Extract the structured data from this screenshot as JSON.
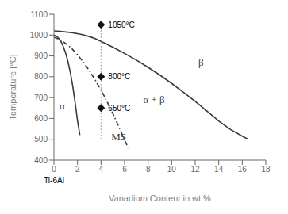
{
  "chart_data": {
    "type": "line",
    "xlabel": "Vanadium Content in wt.%",
    "ylabel": "Temperature [°C]",
    "xlim": [
      0,
      18
    ],
    "ylim": [
      400,
      1100
    ],
    "xticks": [
      0,
      2,
      4,
      6,
      8,
      10,
      12,
      14,
      16,
      18
    ],
    "yticks": [
      400,
      500,
      600,
      700,
      800,
      900,
      1000,
      1100
    ],
    "grid": false,
    "data_labels": true,
    "series": [
      {
        "type": "line",
        "color": "#3a3a3a",
        "line_style": "solid",
        "x": [
          0.0,
          0.5,
          1.0,
          1.5,
          2.0,
          2.5,
          3.0,
          3.5,
          4.0,
          5.0,
          6.0,
          7.0,
          8.0,
          9.0,
          10.0,
          11.0,
          12.0,
          13.0,
          14.0,
          15.0,
          16.0,
          16.5
        ],
        "values": [
          1020,
          1018,
          1015,
          1012,
          1007,
          1001,
          993,
          983,
          970,
          942,
          912,
          880,
          845,
          808,
          768,
          726,
          682,
          635,
          588,
          547,
          515,
          500
        ]
      },
      {
        "type": "line",
        "color": "#3a3a3a",
        "line_style": "solid",
        "x": [
          0.0,
          0.2,
          0.4,
          0.6,
          0.8,
          1.0,
          1.2,
          1.4,
          1.6,
          1.8,
          2.0,
          2.1,
          2.2
        ],
        "values": [
          1000,
          995,
          985,
          968,
          944,
          912,
          870,
          818,
          753,
          675,
          590,
          555,
          520
        ]
      },
      {
        "type": "line",
        "color": "#3a3a3a",
        "line_style": "dashdot",
        "x": [
          0.0,
          0.5,
          1.0,
          1.5,
          2.0,
          2.5,
          3.0,
          3.5,
          4.0,
          4.5,
          5.0,
          5.5,
          6.0,
          6.3
        ],
        "values": [
          990,
          978,
          960,
          936,
          906,
          870,
          830,
          785,
          736,
          682,
          624,
          562,
          496,
          460
        ]
      },
      {
        "type": "line",
        "color": "#888888",
        "line_style": "dotted",
        "x": [
          4.0,
          4.0
        ],
        "values": [
          500,
          1055
        ]
      },
      {
        "type": "scatter",
        "color": "#111111",
        "marker": "diamond",
        "x": [
          4.0,
          4.0,
          4.0
        ],
        "values": [
          1050,
          800,
          650
        ],
        "value_labels": [
          "1050°C",
          "800°C",
          "650°C"
        ]
      }
    ],
    "annotations": [
      {
        "text": "α",
        "x": 0.7,
        "y": 660
      },
      {
        "text": "β",
        "x": 12.5,
        "y": 870
      },
      {
        "text": "α + β",
        "x": 8.5,
        "y": 690
      },
      {
        "text": "MS",
        "x": 5.5,
        "y": 512
      },
      {
        "text": "Ti-6Al",
        "x": 0
      }
    ]
  }
}
